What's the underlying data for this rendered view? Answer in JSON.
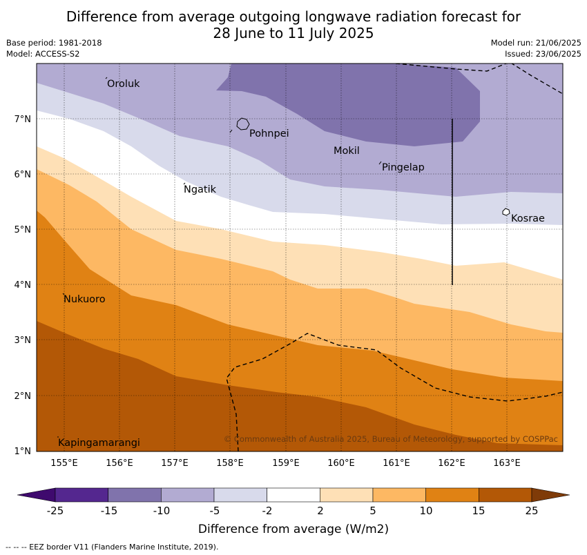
{
  "title": {
    "line1": "Difference from average outgoing longwave radiation forecast for",
    "line2": "28 June to 11 July 2025"
  },
  "meta": {
    "base_period": "Base period: 1981-2018",
    "model": "Model: ACCESS-S2",
    "model_run": "Model run: 21/06/2025",
    "issued": "Issued: 23/06/2025"
  },
  "map": {
    "lon_labels": [
      "155°E",
      "156°E",
      "157°E",
      "158°E",
      "159°E",
      "160°E",
      "161°E",
      "162°E",
      "163°E"
    ],
    "lat_labels": [
      "7°N",
      "6°N",
      "5°N",
      "4°N",
      "3°N",
      "2°N",
      "1°N"
    ],
    "places": [
      "Oroluk",
      "Pohnpei",
      "Mokil",
      "Pingelap",
      "Ngatik",
      "Kosrae",
      "Nukuoro",
      "Kapingamarangi"
    ],
    "copyright": "© Commonwealth of Australia 2025, Bureau of Meteorology, supported by COSPPac"
  },
  "colorbar": {
    "ticks": [
      "-25",
      "-15",
      "-10",
      "-5",
      "-2",
      "2",
      "5",
      "10",
      "15",
      "25"
    ],
    "colors": [
      "#3f0a6e",
      "#54278f",
      "#8073ac",
      "#b2abd2",
      "#d8daeb",
      "#ffffff",
      "#fee0b6",
      "#fdb863",
      "#e08214",
      "#b35806",
      "#7f3b08"
    ],
    "title": "Difference from average (W/m2)"
  },
  "legend": {
    "eez": "-- -- -- EEZ border V11 (Flanders Marine Institute, 2019)."
  }
}
